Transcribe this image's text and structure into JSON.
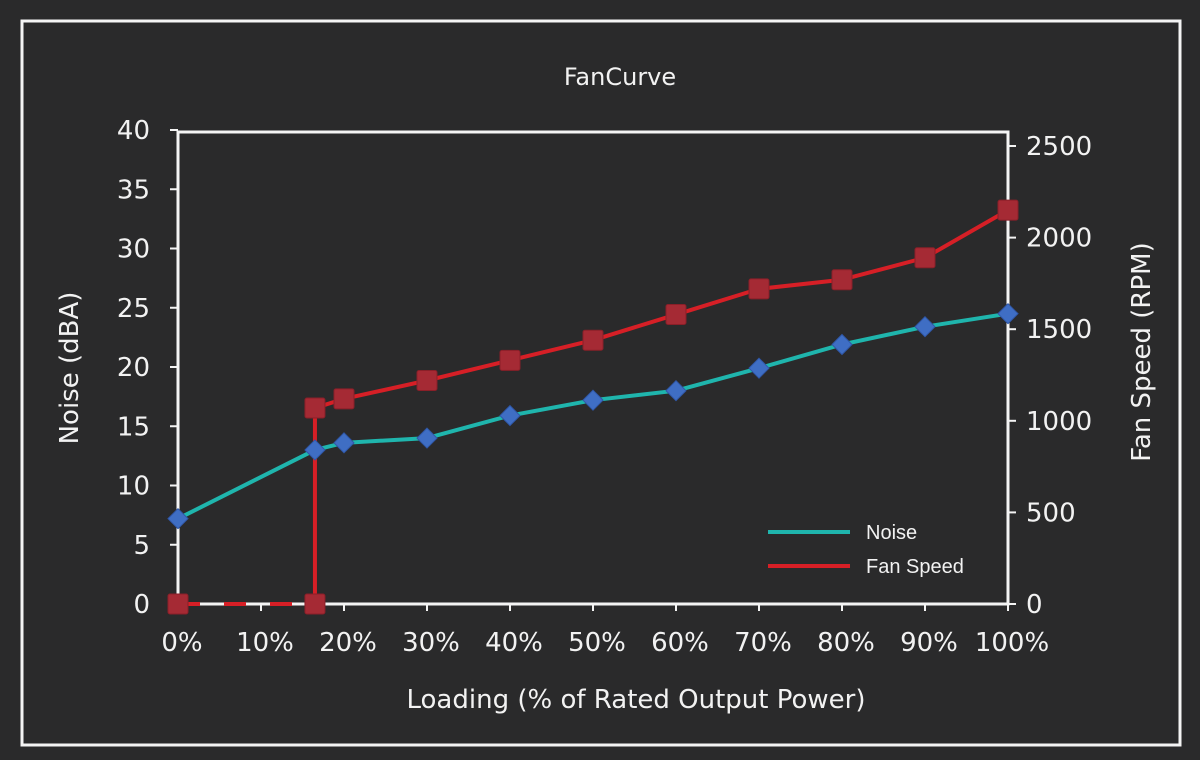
{
  "chart_data": {
    "type": "line",
    "title": "FanCurve",
    "xlabel": "Loading (% of Rated Output Power)",
    "ylabel_left": "Noise (dBA)",
    "ylabel_right": "Fan Speed (RPM)",
    "x_ticks": [
      "0%",
      "10%",
      "20%",
      "30%",
      "40%",
      "50%",
      "60%",
      "70%",
      "80%",
      "90%",
      "100%"
    ],
    "y_left_ticks": [
      "0",
      "5",
      "10",
      "15",
      "20",
      "25",
      "30",
      "35",
      "40"
    ],
    "y_right_ticks": [
      "0",
      "500",
      "1000",
      "1500",
      "2000",
      "2500"
    ],
    "xlim": [
      0,
      100
    ],
    "ylim_left": [
      0,
      40
    ],
    "ylim_right": [
      0,
      2500
    ],
    "legend_position": "bottom-right",
    "grid": false,
    "series": [
      {
        "name": "Noise",
        "axis": "left",
        "color": "#1fb5ad",
        "marker": "diamond",
        "marker_color": "#3f6ec4",
        "x": [
          0,
          16.5,
          20,
          30,
          40,
          50,
          60,
          70,
          80,
          90,
          100
        ],
        "values": [
          7.2,
          13.0,
          13.6,
          14.0,
          15.9,
          17.2,
          18.0,
          19.9,
          21.9,
          23.4,
          24.5
        ]
      },
      {
        "name": "Fan Speed",
        "axis": "right",
        "color": "#d61f26",
        "marker": "square",
        "marker_color": "#a52a34",
        "x": [
          0,
          16.5,
          16.5,
          20,
          30,
          40,
          50,
          60,
          70,
          80,
          90,
          100
        ],
        "values": [
          0,
          0,
          1070,
          1120,
          1220,
          1330,
          1440,
          1580,
          1720,
          1770,
          1890,
          2150
        ],
        "dashed_segment": [
          0,
          16.5
        ]
      }
    ]
  }
}
